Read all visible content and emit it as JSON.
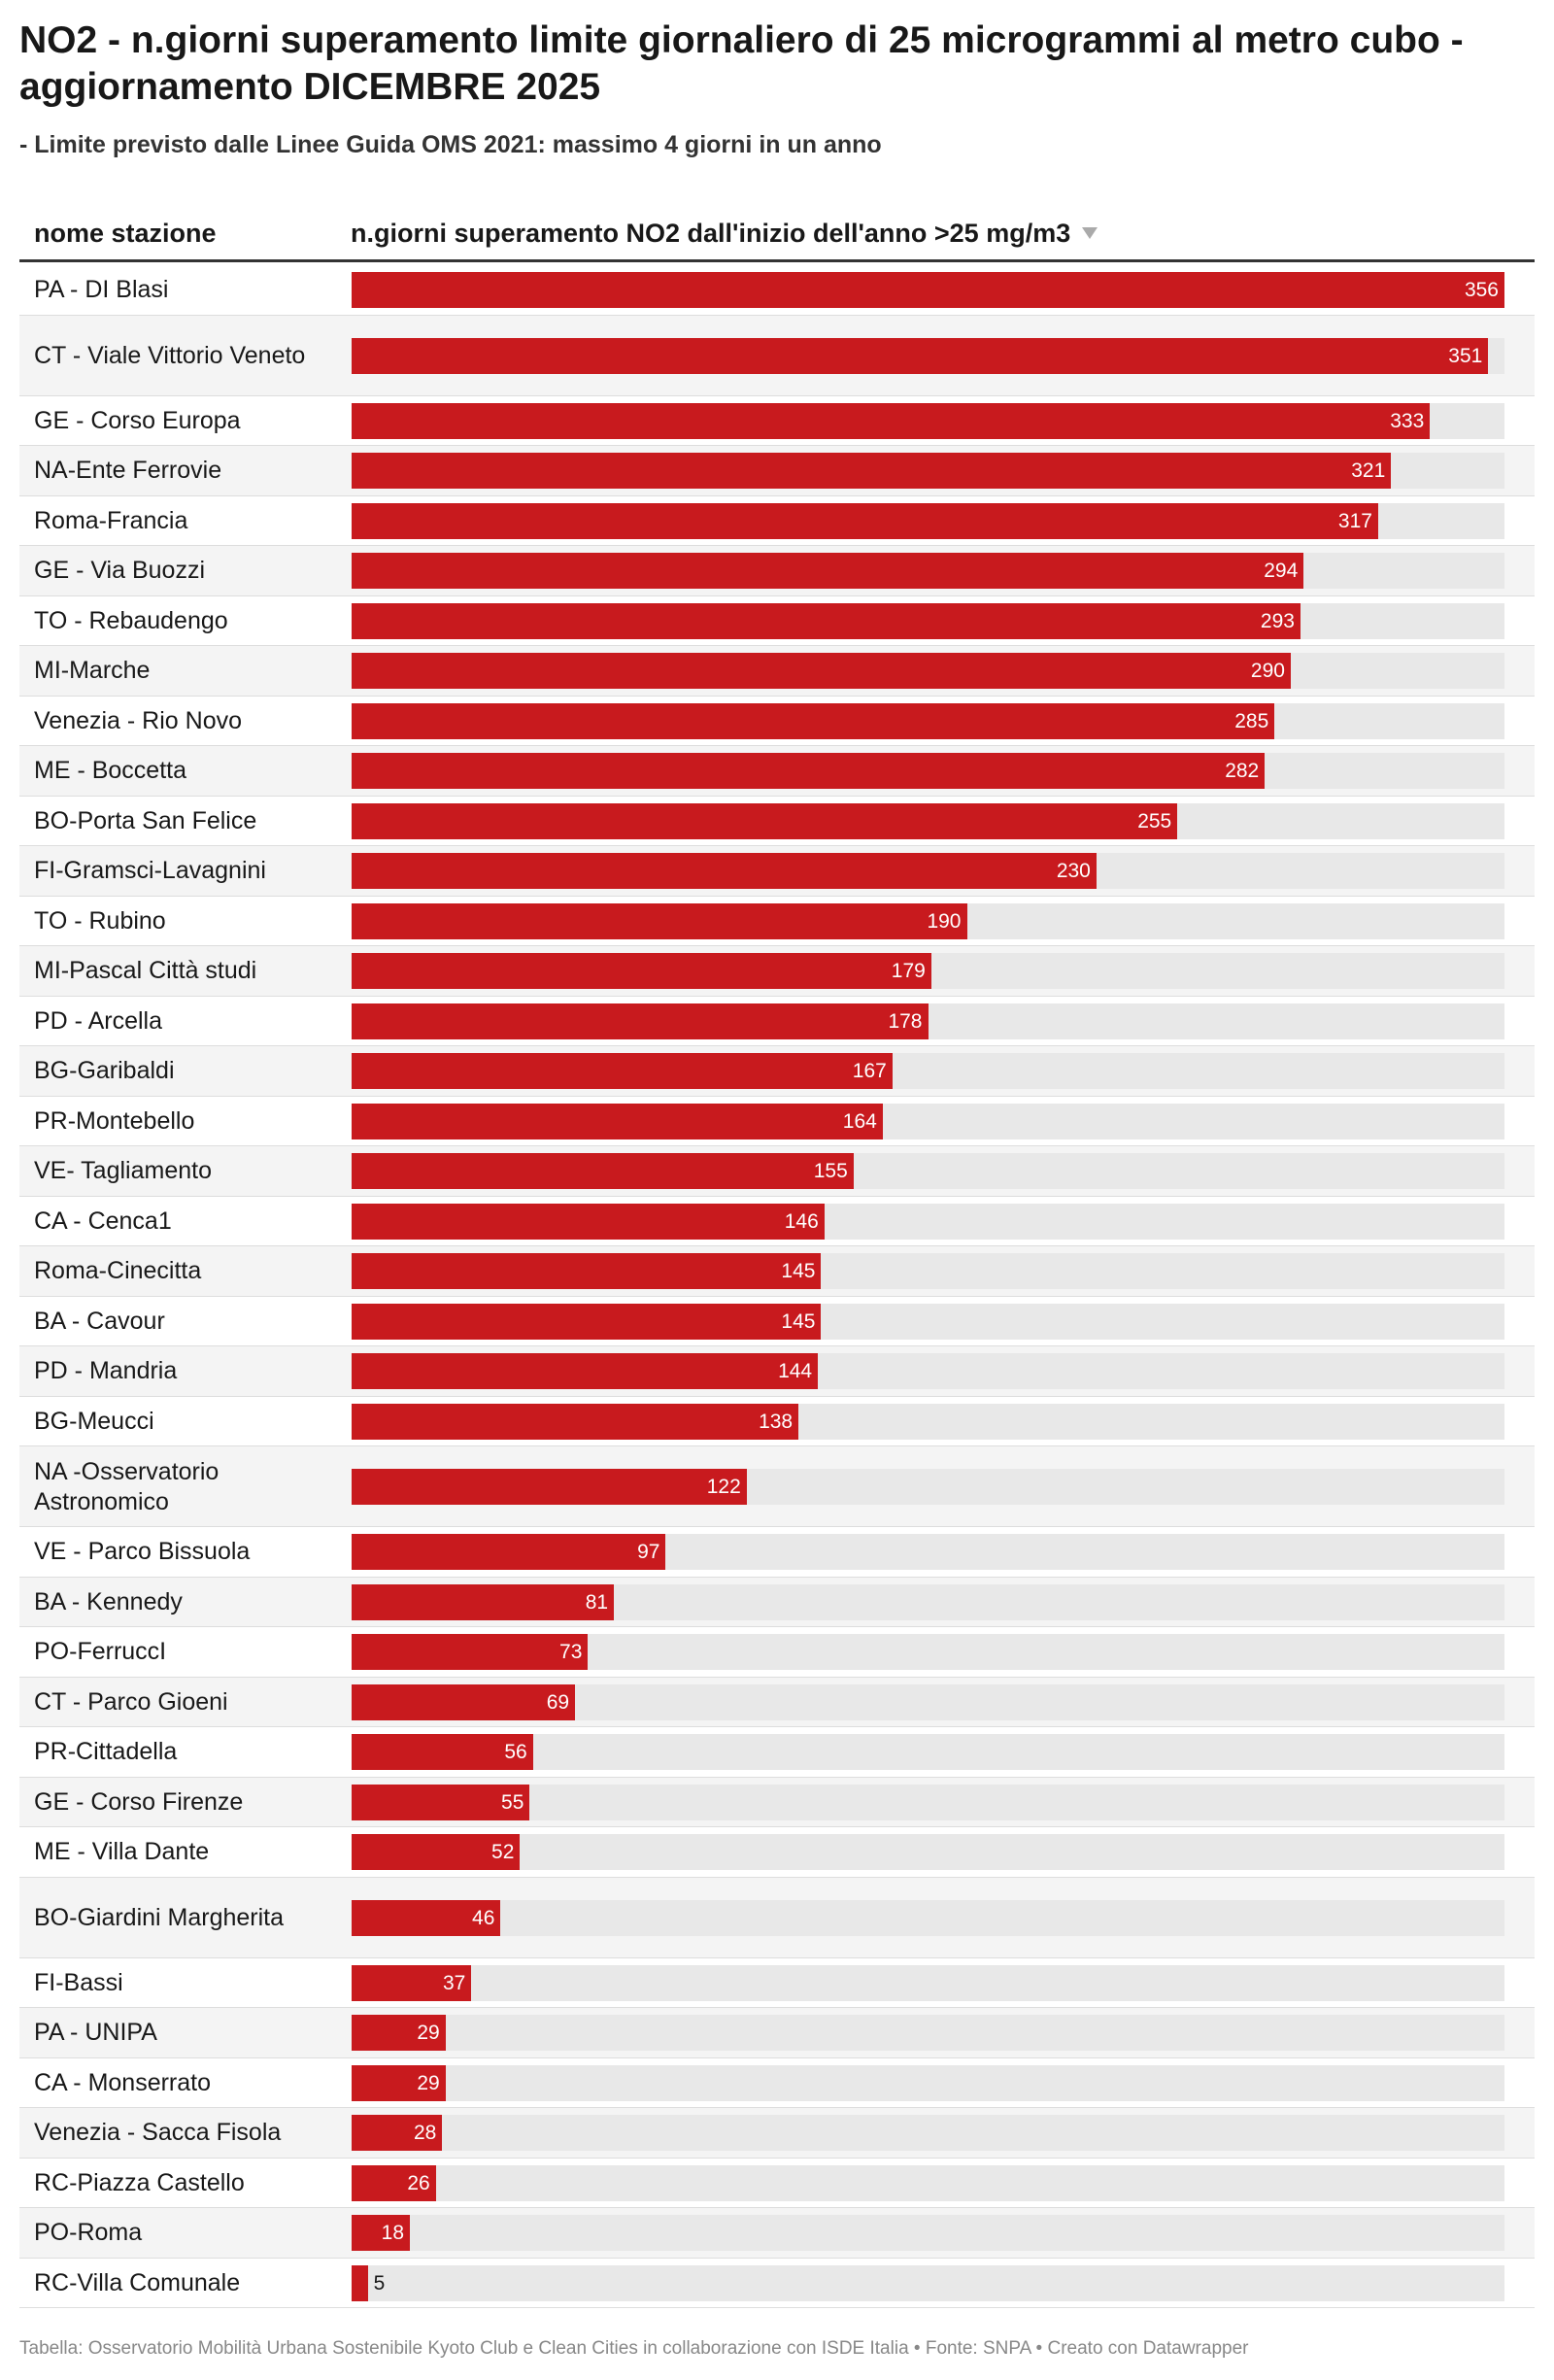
{
  "title": "NO2 - n.giorni superamento limite giornaliero di 25 microgrammi al metro cubo - aggiornamento DICEMBRE 2025",
  "subtitle": "- Limite previsto dalle Linee Guida OMS 2021: massimo 4 giorni in un anno",
  "table_header": {
    "station_label": "nome stazione",
    "value_label": "n.giorni superamento NO2 dall'inizio dell'anno >25 mg/m3",
    "sort_icon": "sort-descending-icon"
  },
  "footer": "Tabella: Osservatorio Mobilità Urbana Sostenibile Kyoto Club e Clean Cities in collaborazione con ISDE Italia • Fonte: SNPA • Creato con Datawrapper",
  "colors": {
    "bar": "#c81a1e",
    "bar_background": "#e8e8e8",
    "row_alt": "#f4f4f4"
  },
  "chart_data": {
    "type": "bar",
    "orientation": "horizontal",
    "xlim": [
      0,
      356
    ],
    "categories": [
      "PA - DI Blasi",
      "CT - Viale Vittorio Veneto",
      "GE - Corso Europa",
      "NA-Ente Ferrovie",
      "Roma-Francia",
      "GE - Via Buozzi",
      "TO - Rebaudengo",
      "MI-Marche",
      "Venezia - Rio Novo",
      "ME - Boccetta",
      "BO-Porta San Felice",
      "FI-Gramsci-Lavagnini",
      "TO - Rubino",
      "MI-Pascal Città studi",
      "PD - Arcella",
      "BG-Garibaldi",
      "PR-Montebello",
      "VE- Tagliamento",
      "CA - Cenca1",
      "Roma-Cinecitta",
      "BA - Cavour",
      "PD - Mandria",
      "BG-Meucci",
      "NA -Osservatorio Astronomico",
      "VE - Parco Bissuola",
      "BA - Kennedy",
      "PO-FerruccI",
      "CT - Parco Gioeni",
      "PR-Cittadella",
      "GE - Corso Firenze",
      "ME - Villa Dante",
      "BO-Giardini Margherita",
      "FI-Bassi",
      "PA - UNIPA",
      "CA - Monserrato",
      "Venezia - Sacca Fisola",
      "RC-Piazza Castello",
      "PO-Roma",
      "RC-Villa Comunale"
    ],
    "values": [
      356,
      351,
      333,
      321,
      317,
      294,
      293,
      290,
      285,
      282,
      255,
      230,
      190,
      179,
      178,
      167,
      164,
      155,
      146,
      145,
      145,
      144,
      138,
      122,
      97,
      81,
      73,
      69,
      56,
      55,
      52,
      46,
      37,
      29,
      29,
      28,
      26,
      18,
      5
    ]
  }
}
